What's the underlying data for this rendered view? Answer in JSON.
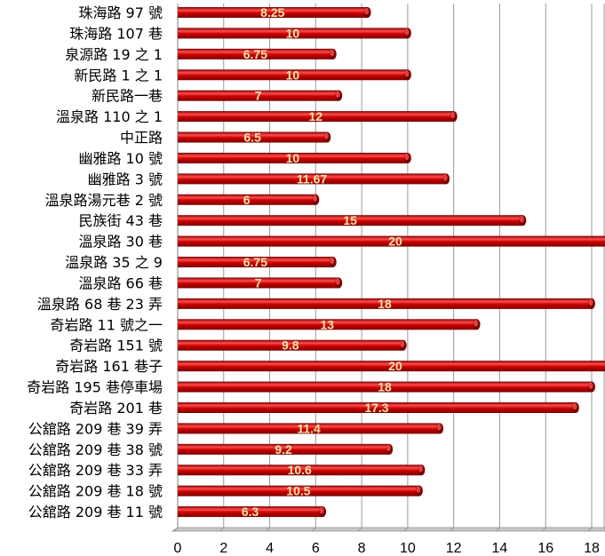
{
  "chart_data": {
    "type": "bar",
    "orientation": "horizontal",
    "title": "",
    "xlabel": "",
    "ylabel": "",
    "xlim": [
      0,
      18
    ],
    "xticks": [
      0,
      2,
      4,
      6,
      8,
      10,
      12,
      14,
      16,
      18
    ],
    "grid": true,
    "categories": [
      "珠海路 97 號",
      "珠海路 107 巷",
      "泉源路 19 之 1",
      "新民路 1 之 1",
      "新民路一巷",
      "溫泉路 110 之 1",
      "中正路",
      "幽雅路 10 號",
      "幽雅路 3 號",
      "溫泉路湯元巷 2 號",
      "民族街 43 巷",
      "溫泉路 30 巷",
      "溫泉路 35 之 9",
      "溫泉路 66 巷",
      "溫泉路 68 巷 23 弄",
      "奇岩路 11 號之一",
      "奇岩路 151 號",
      "奇岩路 161 巷子",
      "奇岩路 195 巷停車場",
      "奇岩路 201 巷",
      "公舘路 209 巷 39 弄",
      "公舘路 209 巷 38 號",
      "公舘路 209 巷 33 弄",
      "公舘路 209 巷 18 號",
      "公舘路 209 巷 11 號"
    ],
    "values": [
      8.25,
      10,
      6.75,
      10,
      7,
      12,
      6.5,
      10,
      11.67,
      6,
      15,
      20,
      6.75,
      7,
      18,
      13,
      9.8,
      20,
      18,
      17.3,
      11.4,
      9.2,
      10.6,
      10.5,
      6.3
    ],
    "value_labels": [
      "8.25",
      "10",
      "6.75",
      "10",
      "7",
      "12",
      "6.5",
      "10",
      "11.67",
      "6",
      "15",
      "20",
      "6.75",
      "7",
      "18",
      "13",
      "9.8",
      "20",
      "18",
      "17.3",
      "11.4",
      "9.2",
      "10.6",
      "10.5",
      "6.3"
    ],
    "bar_color": "#cc0000",
    "bar_highlight": "#ff4d4d",
    "bar_shadow": "#7a0000",
    "label_color": "#f5e6a8",
    "grid_color": "#9a9a9a",
    "floor_color": "#c8c8c8"
  }
}
